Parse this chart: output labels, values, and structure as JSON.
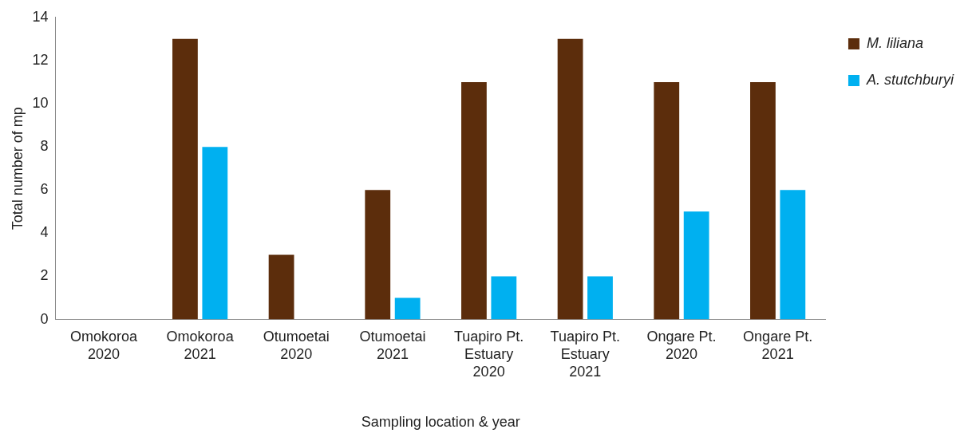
{
  "chart_data": {
    "type": "bar",
    "xlabel": "Sampling location & year",
    "ylabel": "Total number of mp",
    "categories": [
      "Omokoroa\n2020",
      "Omokoroa\n2021",
      "Otumoetai\n2020",
      "Otumoetai\n2021",
      "Tuapiro Pt.\nEstuary\n2020",
      "Tuapiro Pt.\nEstuary\n2021",
      "Ongare Pt.\n2020",
      "Ongare Pt.\n2021"
    ],
    "series": [
      {
        "name": "M. liliana",
        "color": "#5c2d0c",
        "values": [
          0,
          13,
          3,
          6,
          11,
          13,
          11,
          11
        ]
      },
      {
        "name": "A. stutchburyi",
        "color": "#00b0f0",
        "values": [
          0,
          8,
          0,
          1,
          2,
          2,
          5,
          6
        ]
      }
    ],
    "ylim": [
      0,
      14
    ],
    "yticks": [
      0,
      2,
      4,
      6,
      8,
      10,
      12,
      14
    ],
    "grid": false,
    "legend": "right"
  }
}
